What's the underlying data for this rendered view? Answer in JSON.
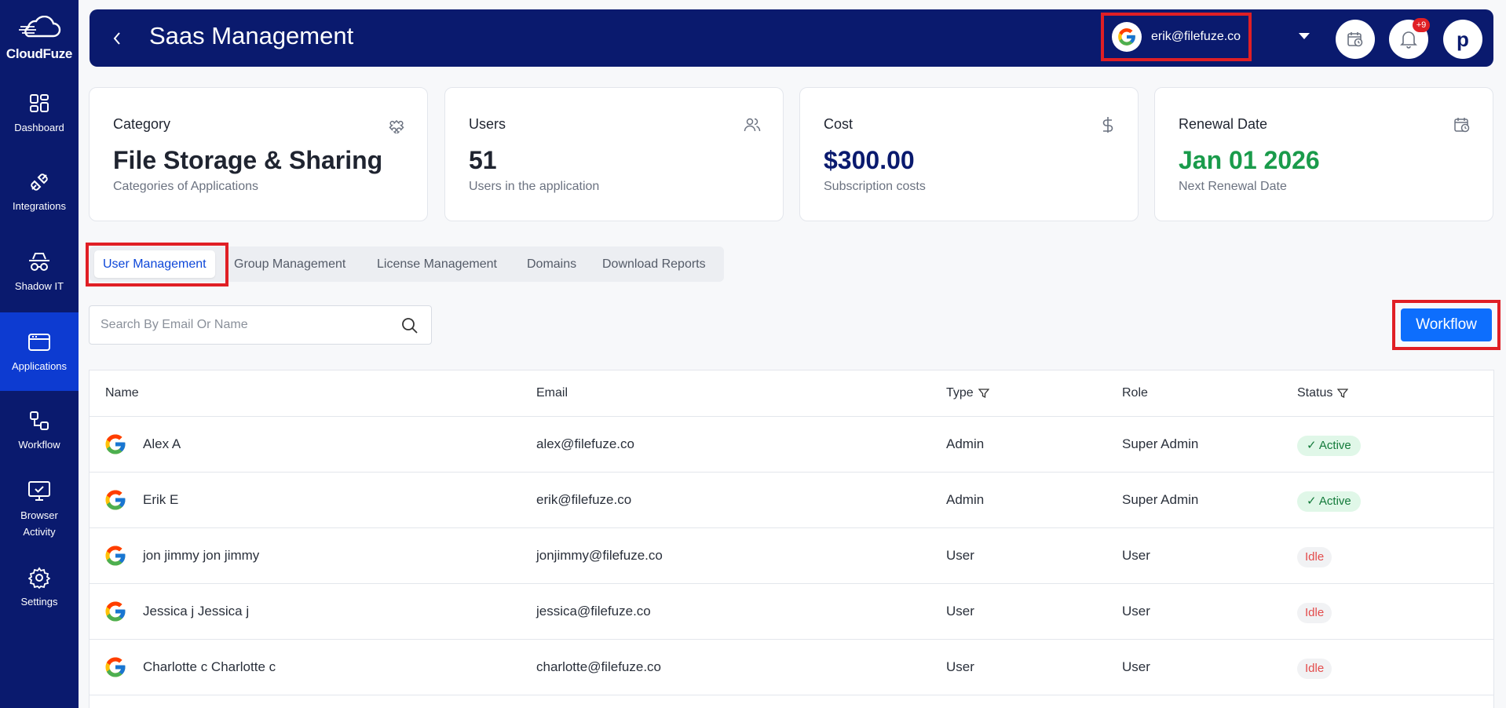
{
  "brand": {
    "name": "CloudFuze"
  },
  "sidebar": {
    "items": [
      {
        "label": "Dashboard",
        "icon": "dashboard-icon"
      },
      {
        "label": "Integrations",
        "icon": "plug-icon"
      },
      {
        "label": "Shadow IT",
        "icon": "spy-icon"
      },
      {
        "label": "Applications",
        "icon": "window-icon",
        "active": true
      },
      {
        "label": "Workflow",
        "icon": "workflow-icon"
      },
      {
        "label": "Browser\nActivity",
        "label_line1": "Browser",
        "label_line2": "Activity",
        "icon": "monitor-check-icon"
      },
      {
        "label": "Settings",
        "icon": "gear-icon"
      }
    ]
  },
  "header": {
    "title": "Saas Management",
    "account_email": "erik@filefuze.co",
    "notification_badge": "+9",
    "avatar_letter": "p"
  },
  "cards": [
    {
      "title": "Category",
      "value": "File Storage & Sharing",
      "sub": "Categories of Applications",
      "icon": "puzzle-icon",
      "value_color": "#1f2430"
    },
    {
      "title": "Users",
      "value": "51",
      "sub": "Users in the application",
      "icon": "users-icon",
      "value_color": "#1f2430"
    },
    {
      "title": "Cost",
      "value": "$300.00",
      "sub": "Subscription costs",
      "icon": "dollar-icon",
      "value_color": "#0a1a6e"
    },
    {
      "title": "Renewal Date",
      "value": "Jan 01 2026",
      "sub": "Next Renewal Date",
      "icon": "calendar-icon",
      "value_color": "#1a9b4b"
    }
  ],
  "tabs": [
    "User Management",
    "Group Management",
    "License Management",
    "Domains",
    "Download Reports"
  ],
  "search": {
    "placeholder": "Search By Email Or Name",
    "value": ""
  },
  "workflow_button": "Workflow",
  "table": {
    "columns": [
      "Name",
      "Email",
      "Type",
      "Role",
      "Status"
    ],
    "rows": [
      {
        "name": "Alex A",
        "email": "alex@filefuze.co",
        "type": "Admin",
        "role": "Super Admin",
        "status": "Active"
      },
      {
        "name": "Erik E",
        "email": "erik@filefuze.co",
        "type": "Admin",
        "role": "Super Admin",
        "status": "Active"
      },
      {
        "name": "jon jimmy jon jimmy",
        "email": "jonjimmy@filefuze.co",
        "type": "User",
        "role": "User",
        "status": "Idle"
      },
      {
        "name": "Jessica j Jessica j",
        "email": "jessica@filefuze.co",
        "type": "User",
        "role": "User",
        "status": "Idle"
      },
      {
        "name": "Charlotte c Charlotte c",
        "email": "charlotte@filefuze.co",
        "type": "User",
        "role": "User",
        "status": "Idle"
      }
    ]
  }
}
